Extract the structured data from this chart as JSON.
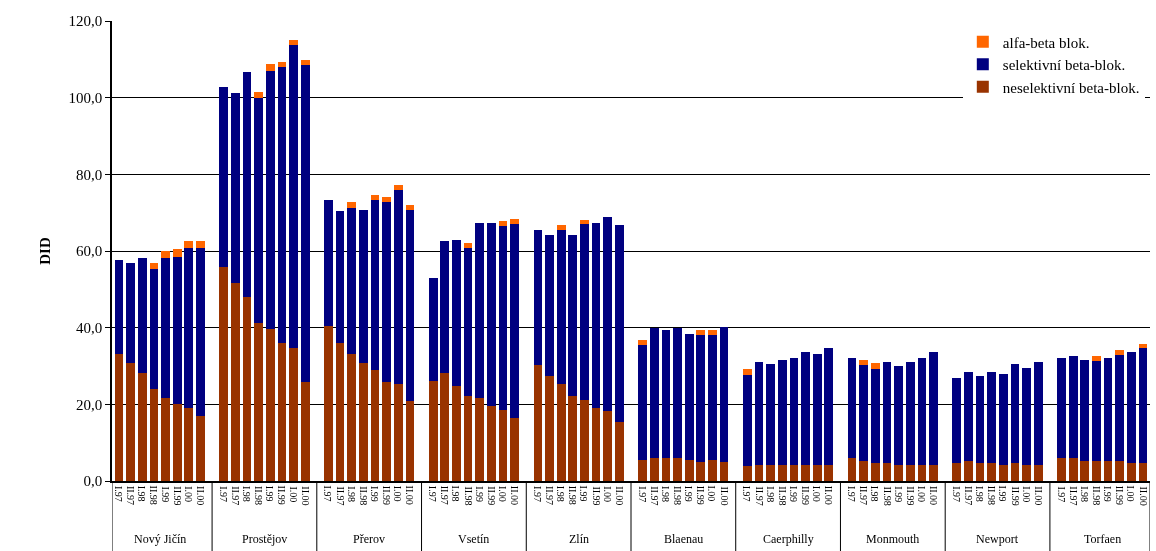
{
  "chart_data": {
    "type": "bar",
    "stacked": true,
    "ylabel": "DID",
    "categories": [
      "I.97",
      "II.97",
      "I.98",
      "II.98",
      "I.99",
      "II.99",
      "I.00",
      "II.00",
      "I.97",
      "II.97",
      "I.98",
      "II.98",
      "I.99",
      "II.99",
      "I.00",
      "II.00",
      "I.97",
      "II.97",
      "I.98",
      "II.98",
      "I.99",
      "II.99",
      "I.00",
      "II.00",
      "I.97",
      "II.97",
      "I.98",
      "II.98",
      "I.99",
      "II.99",
      "I.00",
      "II.00",
      "I.97",
      "II.97",
      "I.98",
      "II.98",
      "I.99",
      "II.99",
      "I.00",
      "II.00",
      "I.97",
      "II.97",
      "I.98",
      "II.98",
      "I.99",
      "II.99",
      "I.00",
      "II.00",
      "I.97",
      "II.97",
      "I.98",
      "II.98",
      "I.99",
      "II.99",
      "I.00",
      "II.00",
      "I.97",
      "II.97",
      "I.98",
      "II.98",
      "I.99",
      "II.99",
      "I.00",
      "II.00",
      "I.97",
      "II.97",
      "I.98",
      "II.98",
      "I.99",
      "II.99",
      "I.00",
      "II.00",
      "I.97",
      "II.97",
      "I.98",
      "II.98",
      "I.99",
      "II.99",
      "I.00",
      "II.00"
    ],
    "series": [
      {
        "name": "neselektivní beta-blok.",
        "color": "#993300",
        "values": [
          33.2,
          30.7,
          28.1,
          23.9,
          21.7,
          20.0,
          19.1,
          17.0,
          55.9,
          51.7,
          47.9,
          41.3,
          39.6,
          35.9,
          34.8,
          25.9,
          40.5,
          35.9,
          33.2,
          30.7,
          29.0,
          25.9,
          25.4,
          20.8,
          26.0,
          28.1,
          24.9,
          22.3,
          21.7,
          19.6,
          18.6,
          16.5,
          30.2,
          27.5,
          25.4,
          22.3,
          21.2,
          19.1,
          18.2,
          15.4,
          5.5,
          5.9,
          5.9,
          5.9,
          5.5,
          5.0,
          5.5,
          5.0,
          3.8,
          4.2,
          4.2,
          4.2,
          4.2,
          4.2,
          4.2,
          4.2,
          5.9,
          5.3,
          4.8,
          4.8,
          4.2,
          4.2,
          4.2,
          4.2,
          4.8,
          5.3,
          4.8,
          4.8,
          4.2,
          4.8,
          4.2,
          4.2,
          5.9,
          5.9,
          5.3,
          5.3,
          5.3,
          5.3,
          4.8,
          4.8
        ]
      },
      {
        "name": "selektivní beta-blok.",
        "color": "#000080",
        "values": [
          24.5,
          26.1,
          30.2,
          31.5,
          36.4,
          38.5,
          41.6,
          43.7,
          47.0,
          49.6,
          58.7,
          58.7,
          67.4,
          72.0,
          79.0,
          82.6,
          32.9,
          34.5,
          38.0,
          40.1,
          44.3,
          46.9,
          50.5,
          49.9,
          27.0,
          34.4,
          38.1,
          38.4,
          45.6,
          47.7,
          48.0,
          50.6,
          35.4,
          36.6,
          40.2,
          41.8,
          45.9,
          48.2,
          50.6,
          51.3,
          30.0,
          34.0,
          33.5,
          34.0,
          32.9,
          33.1,
          32.6,
          35.3,
          23.8,
          26.9,
          26.4,
          27.4,
          28.0,
          29.5,
          29.0,
          30.6,
          26.3,
          24.9,
          24.5,
          26.3,
          25.8,
          26.9,
          28.0,
          29.5,
          22.1,
          23.2,
          22.6,
          23.7,
          23.7,
          25.8,
          25.3,
          26.9,
          26.3,
          26.8,
          26.3,
          26.0,
          26.9,
          27.7,
          28.9,
          30.0
        ]
      },
      {
        "name": "alfa-beta blok.",
        "color": "#ff6600",
        "values": [
          null,
          null,
          null,
          1.4,
          1.8,
          2.0,
          1.8,
          1.8,
          null,
          null,
          null,
          1.5,
          1.9,
          1.4,
          1.2,
          1.3,
          null,
          null,
          1.5,
          null,
          1.4,
          1.4,
          1.4,
          1.3,
          null,
          null,
          null,
          1.4,
          null,
          null,
          1.3,
          1.3,
          null,
          null,
          1.1,
          null,
          1.1,
          null,
          null,
          null,
          1.3,
          null,
          null,
          null,
          null,
          1.3,
          1.3,
          null,
          1.5,
          null,
          null,
          null,
          null,
          null,
          null,
          null,
          null,
          1.4,
          1.4,
          null,
          null,
          null,
          null,
          null,
          null,
          null,
          null,
          null,
          null,
          null,
          null,
          null,
          null,
          null,
          null,
          1.4,
          null,
          1.3,
          null,
          0.9
        ]
      }
    ],
    "ylim": [
      0,
      120
    ],
    "yticks": [
      {
        "value": 0,
        "label": "0,0"
      },
      {
        "value": 20,
        "label": "20,0"
      },
      {
        "value": 40,
        "label": "40,0"
      },
      {
        "value": 60,
        "label": "60,0"
      },
      {
        "value": 80,
        "label": "80,0"
      },
      {
        "value": 100,
        "label": "100,0"
      },
      {
        "value": 120,
        "label": "120,0"
      }
    ],
    "grid": "y",
    "legend": "top right",
    "annotations": [
      "Nový Jičín",
      "Prostějov",
      "Přerov",
      "Vsetín",
      "Zlín",
      "Blaenau",
      "Caerphilly",
      "Monmouth",
      "Newport",
      "Torfaen"
    ]
  }
}
